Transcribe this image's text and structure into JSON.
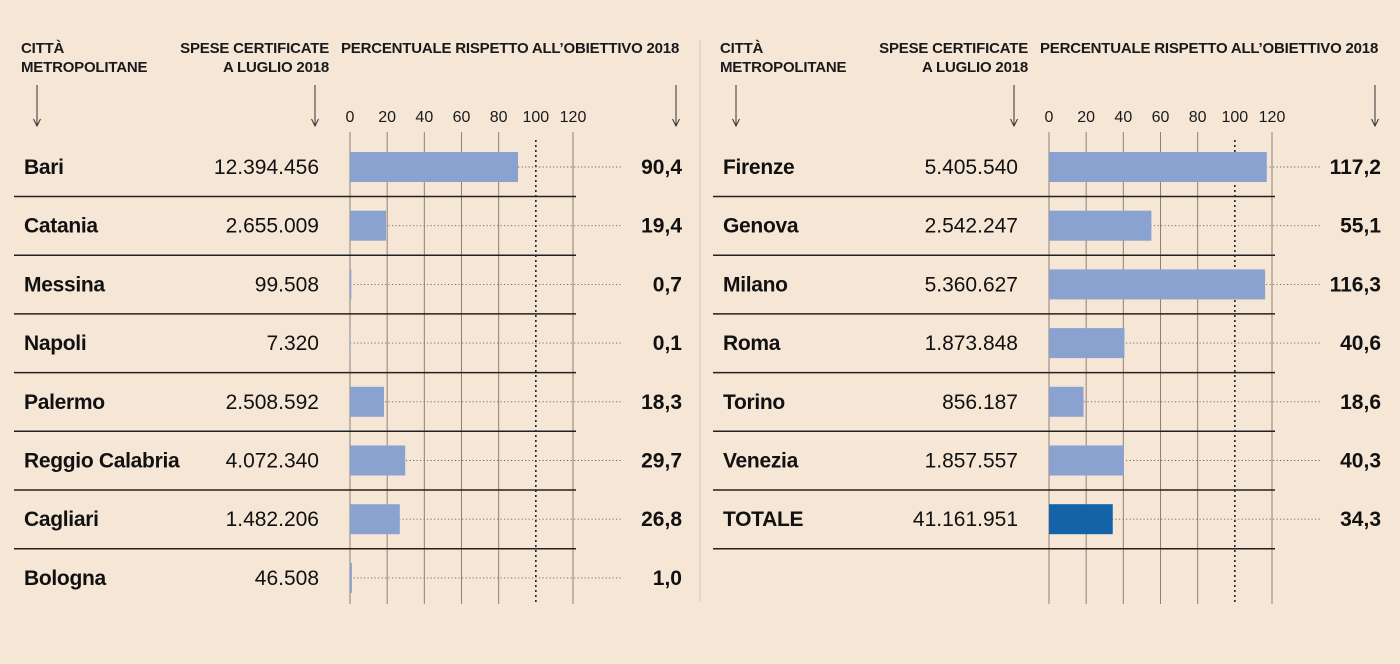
{
  "chart_data": {
    "type": "bar",
    "orientation": "horizontal",
    "headers": {
      "city": [
        "CITTÀ",
        "METROPOLITANE"
      ],
      "spend": [
        "SPESE CERTIFICATE",
        "A LUGLIO 2018"
      ],
      "percent": "PERCENTUALE RISPETTO ALL’OBIETTIVO 2018"
    },
    "xlim": [
      0,
      120
    ],
    "ticks": [
      "0",
      "20",
      "40",
      "60",
      "80",
      "100",
      "120"
    ],
    "reference_line": 100,
    "panels": [
      {
        "rows": [
          {
            "city": "Bari",
            "spend": "12.394.456",
            "value": 90.4,
            "label": "90,4"
          },
          {
            "city": "Catania",
            "spend": "2.655.009",
            "value": 19.4,
            "label": "19,4"
          },
          {
            "city": "Messina",
            "spend": "99.508",
            "value": 0.7,
            "label": "0,7"
          },
          {
            "city": "Napoli",
            "spend": "7.320",
            "value": 0.1,
            "label": "0,1"
          },
          {
            "city": "Palermo",
            "spend": "2.508.592",
            "value": 18.3,
            "label": "18,3"
          },
          {
            "city": "Reggio Calabria",
            "spend": "4.072.340",
            "value": 29.7,
            "label": "29,7"
          },
          {
            "city": "Cagliari",
            "spend": "1.482.206",
            "value": 26.8,
            "label": "26,8"
          },
          {
            "city": "Bologna",
            "spend": "46.508",
            "value": 1.0,
            "label": "1,0"
          }
        ]
      },
      {
        "rows": [
          {
            "city": "Firenze",
            "spend": "5.405.540",
            "value": 117.2,
            "label": "117,2"
          },
          {
            "city": "Genova",
            "spend": "2.542.247",
            "value": 55.1,
            "label": "55,1"
          },
          {
            "city": "Milano",
            "spend": "5.360.627",
            "value": 116.3,
            "label": "116,3"
          },
          {
            "city": "Roma",
            "spend": "1.873.848",
            "value": 40.6,
            "label": "40,6"
          },
          {
            "city": "Torino",
            "spend": "856.187",
            "value": 18.6,
            "label": "18,6"
          },
          {
            "city": "Venezia",
            "spend": "1.857.557",
            "value": 40.3,
            "label": "40,3"
          },
          {
            "city": "TOTALE",
            "spend": "41.161.951",
            "value": 34.3,
            "label": "34,3",
            "total": true
          }
        ]
      }
    ],
    "colors": {
      "bar": "#8aa2cf",
      "total_bar": "#1462a8",
      "background": "#f5e6d6"
    },
    "grid": true
  }
}
